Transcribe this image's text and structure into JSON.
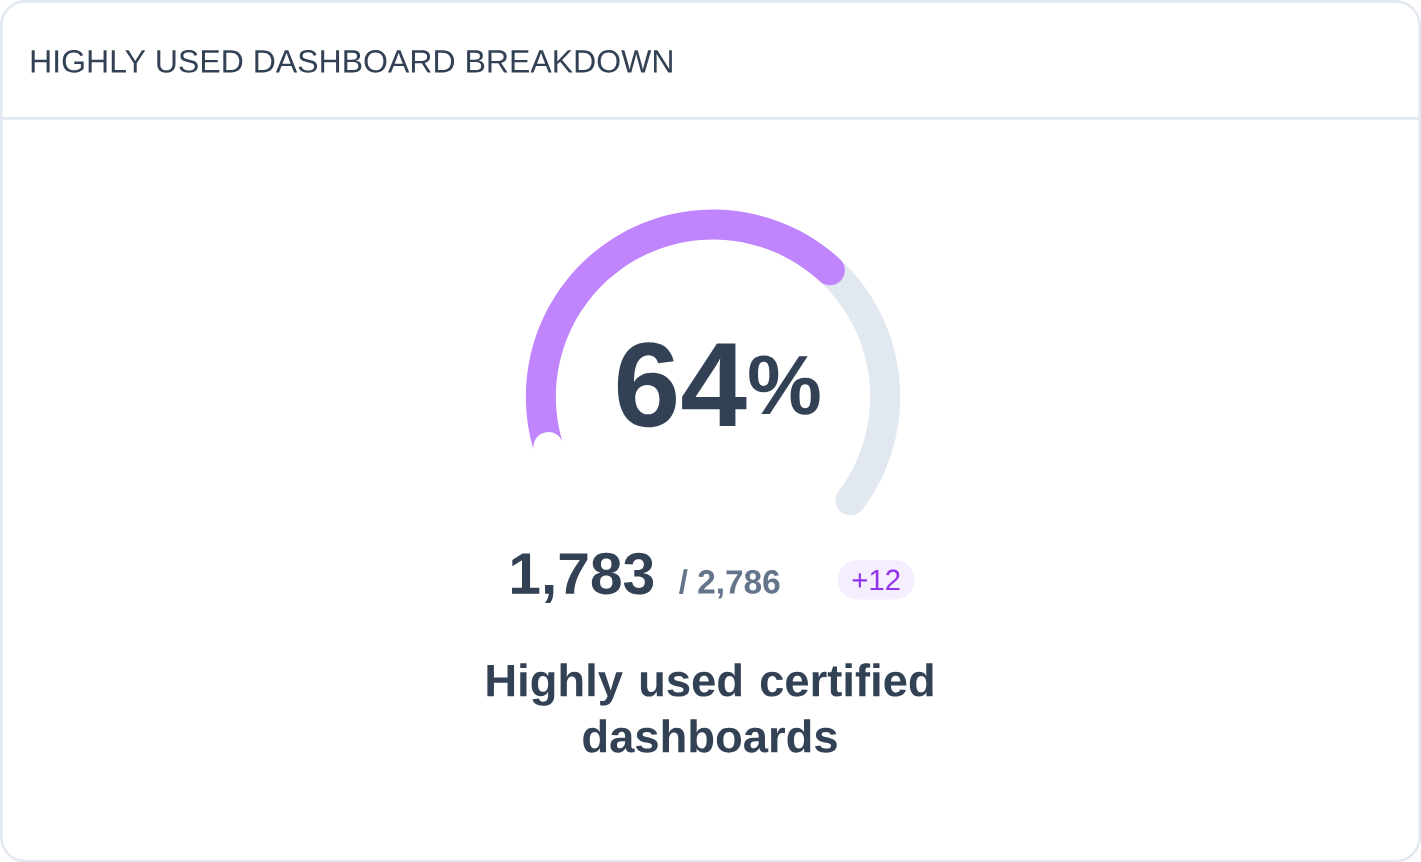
{
  "chart_data": {
    "type": "donut",
    "title": "HIGHLY USED DASHBOARD BREAKDOWN",
    "categories": [
      null,
      null
    ],
    "values": [
      64,
      36
    ],
    "colors": [
      "#c084fc",
      "#e2e8f0"
    ],
    "value_labels": [
      "64$^{%}$",
      null
    ],
    "annotations": [
      "1,783",
      "/ 2,786",
      "+12",
      "Highly used certified dashboards"
    ]
  }
}
